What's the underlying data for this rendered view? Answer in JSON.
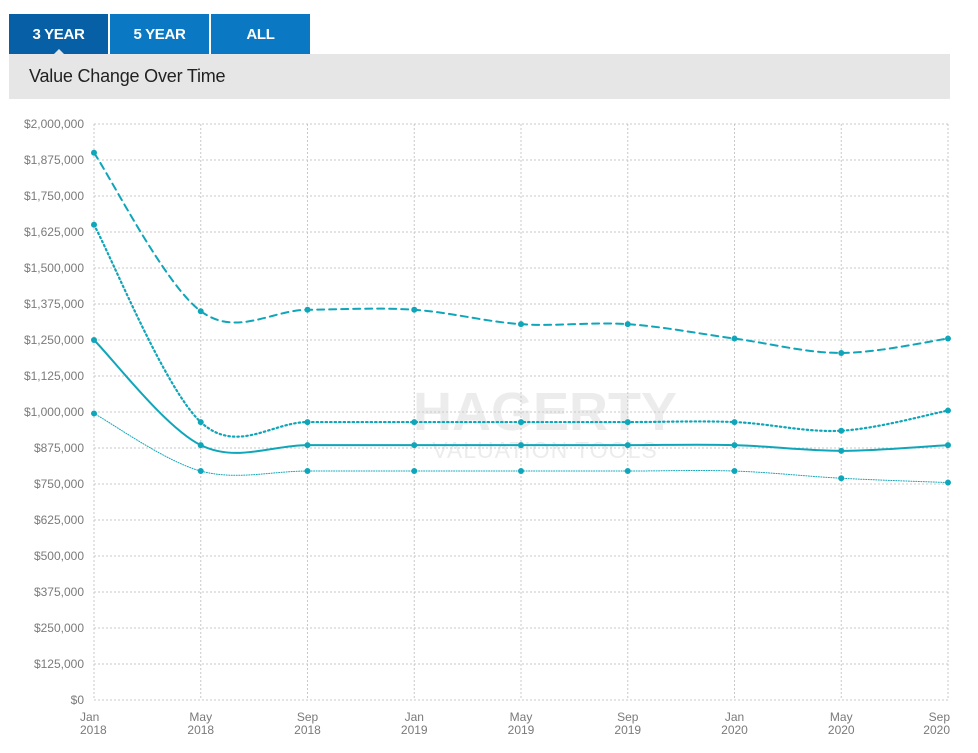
{
  "tabs": [
    {
      "label": "3 YEAR",
      "active": true
    },
    {
      "label": "5 YEAR",
      "active": false
    },
    {
      "label": "ALL",
      "active": false
    }
  ],
  "header": {
    "title": "Value Change Over Time"
  },
  "watermark": {
    "line1": "HAGERTY",
    "line2": "VALUATION TOOLS"
  },
  "colors": {
    "tab": "#0b78c4",
    "tab_active": "#075fa5",
    "series": "#0fa6b9",
    "grid": "#c8c8c8",
    "title_bar": "#e6e6e6"
  },
  "chart_data": {
    "type": "line",
    "ylim": [
      0,
      2000000
    ],
    "y_ticks": [
      {
        "value": 0,
        "label": "$0"
      },
      {
        "value": 125000,
        "label": "$125,000"
      },
      {
        "value": 250000,
        "label": "$250,000"
      },
      {
        "value": 375000,
        "label": "$375,000"
      },
      {
        "value": 500000,
        "label": "$500,000"
      },
      {
        "value": 625000,
        "label": "$625,000"
      },
      {
        "value": 750000,
        "label": "$750,000"
      },
      {
        "value": 875000,
        "label": "$875,000"
      },
      {
        "value": 1000000,
        "label": "$1,000,000"
      },
      {
        "value": 1125000,
        "label": "$1,125,000"
      },
      {
        "value": 1250000,
        "label": "$1,250,000"
      },
      {
        "value": 1375000,
        "label": "$1,375,000"
      },
      {
        "value": 1500000,
        "label": "$1,500,000"
      },
      {
        "value": 1625000,
        "label": "$1,625,000"
      },
      {
        "value": 1750000,
        "label": "$1,750,000"
      },
      {
        "value": 1875000,
        "label": "$1,875,000"
      },
      {
        "value": 2000000,
        "label": "$2,000,000"
      }
    ],
    "x": [
      {
        "month": "Jan",
        "year": "2018"
      },
      {
        "month": "May",
        "year": "2018"
      },
      {
        "month": "Sep",
        "year": "2018"
      },
      {
        "month": "Jan",
        "year": "2019"
      },
      {
        "month": "May",
        "year": "2019"
      },
      {
        "month": "Sep",
        "year": "2019"
      },
      {
        "month": "Jan",
        "year": "2020"
      },
      {
        "month": "May",
        "year": "2020"
      },
      {
        "month": "Sep",
        "year": "2020"
      }
    ],
    "grid": true,
    "series": [
      {
        "style": "dashed",
        "values": [
          1900000,
          1350000,
          1355000,
          1355000,
          1305000,
          1305000,
          1255000,
          1205000,
          1255000
        ]
      },
      {
        "style": "dotted",
        "values": [
          1650000,
          965000,
          965000,
          965000,
          965000,
          965000,
          965000,
          935000,
          1005000
        ]
      },
      {
        "style": "solid",
        "values": [
          1250000,
          885000,
          885000,
          885000,
          885000,
          885000,
          885000,
          865000,
          885000
        ]
      },
      {
        "style": "thin",
        "values": [
          995000,
          795000,
          795000,
          795000,
          795000,
          795000,
          795000,
          770000,
          755000
        ]
      }
    ]
  }
}
